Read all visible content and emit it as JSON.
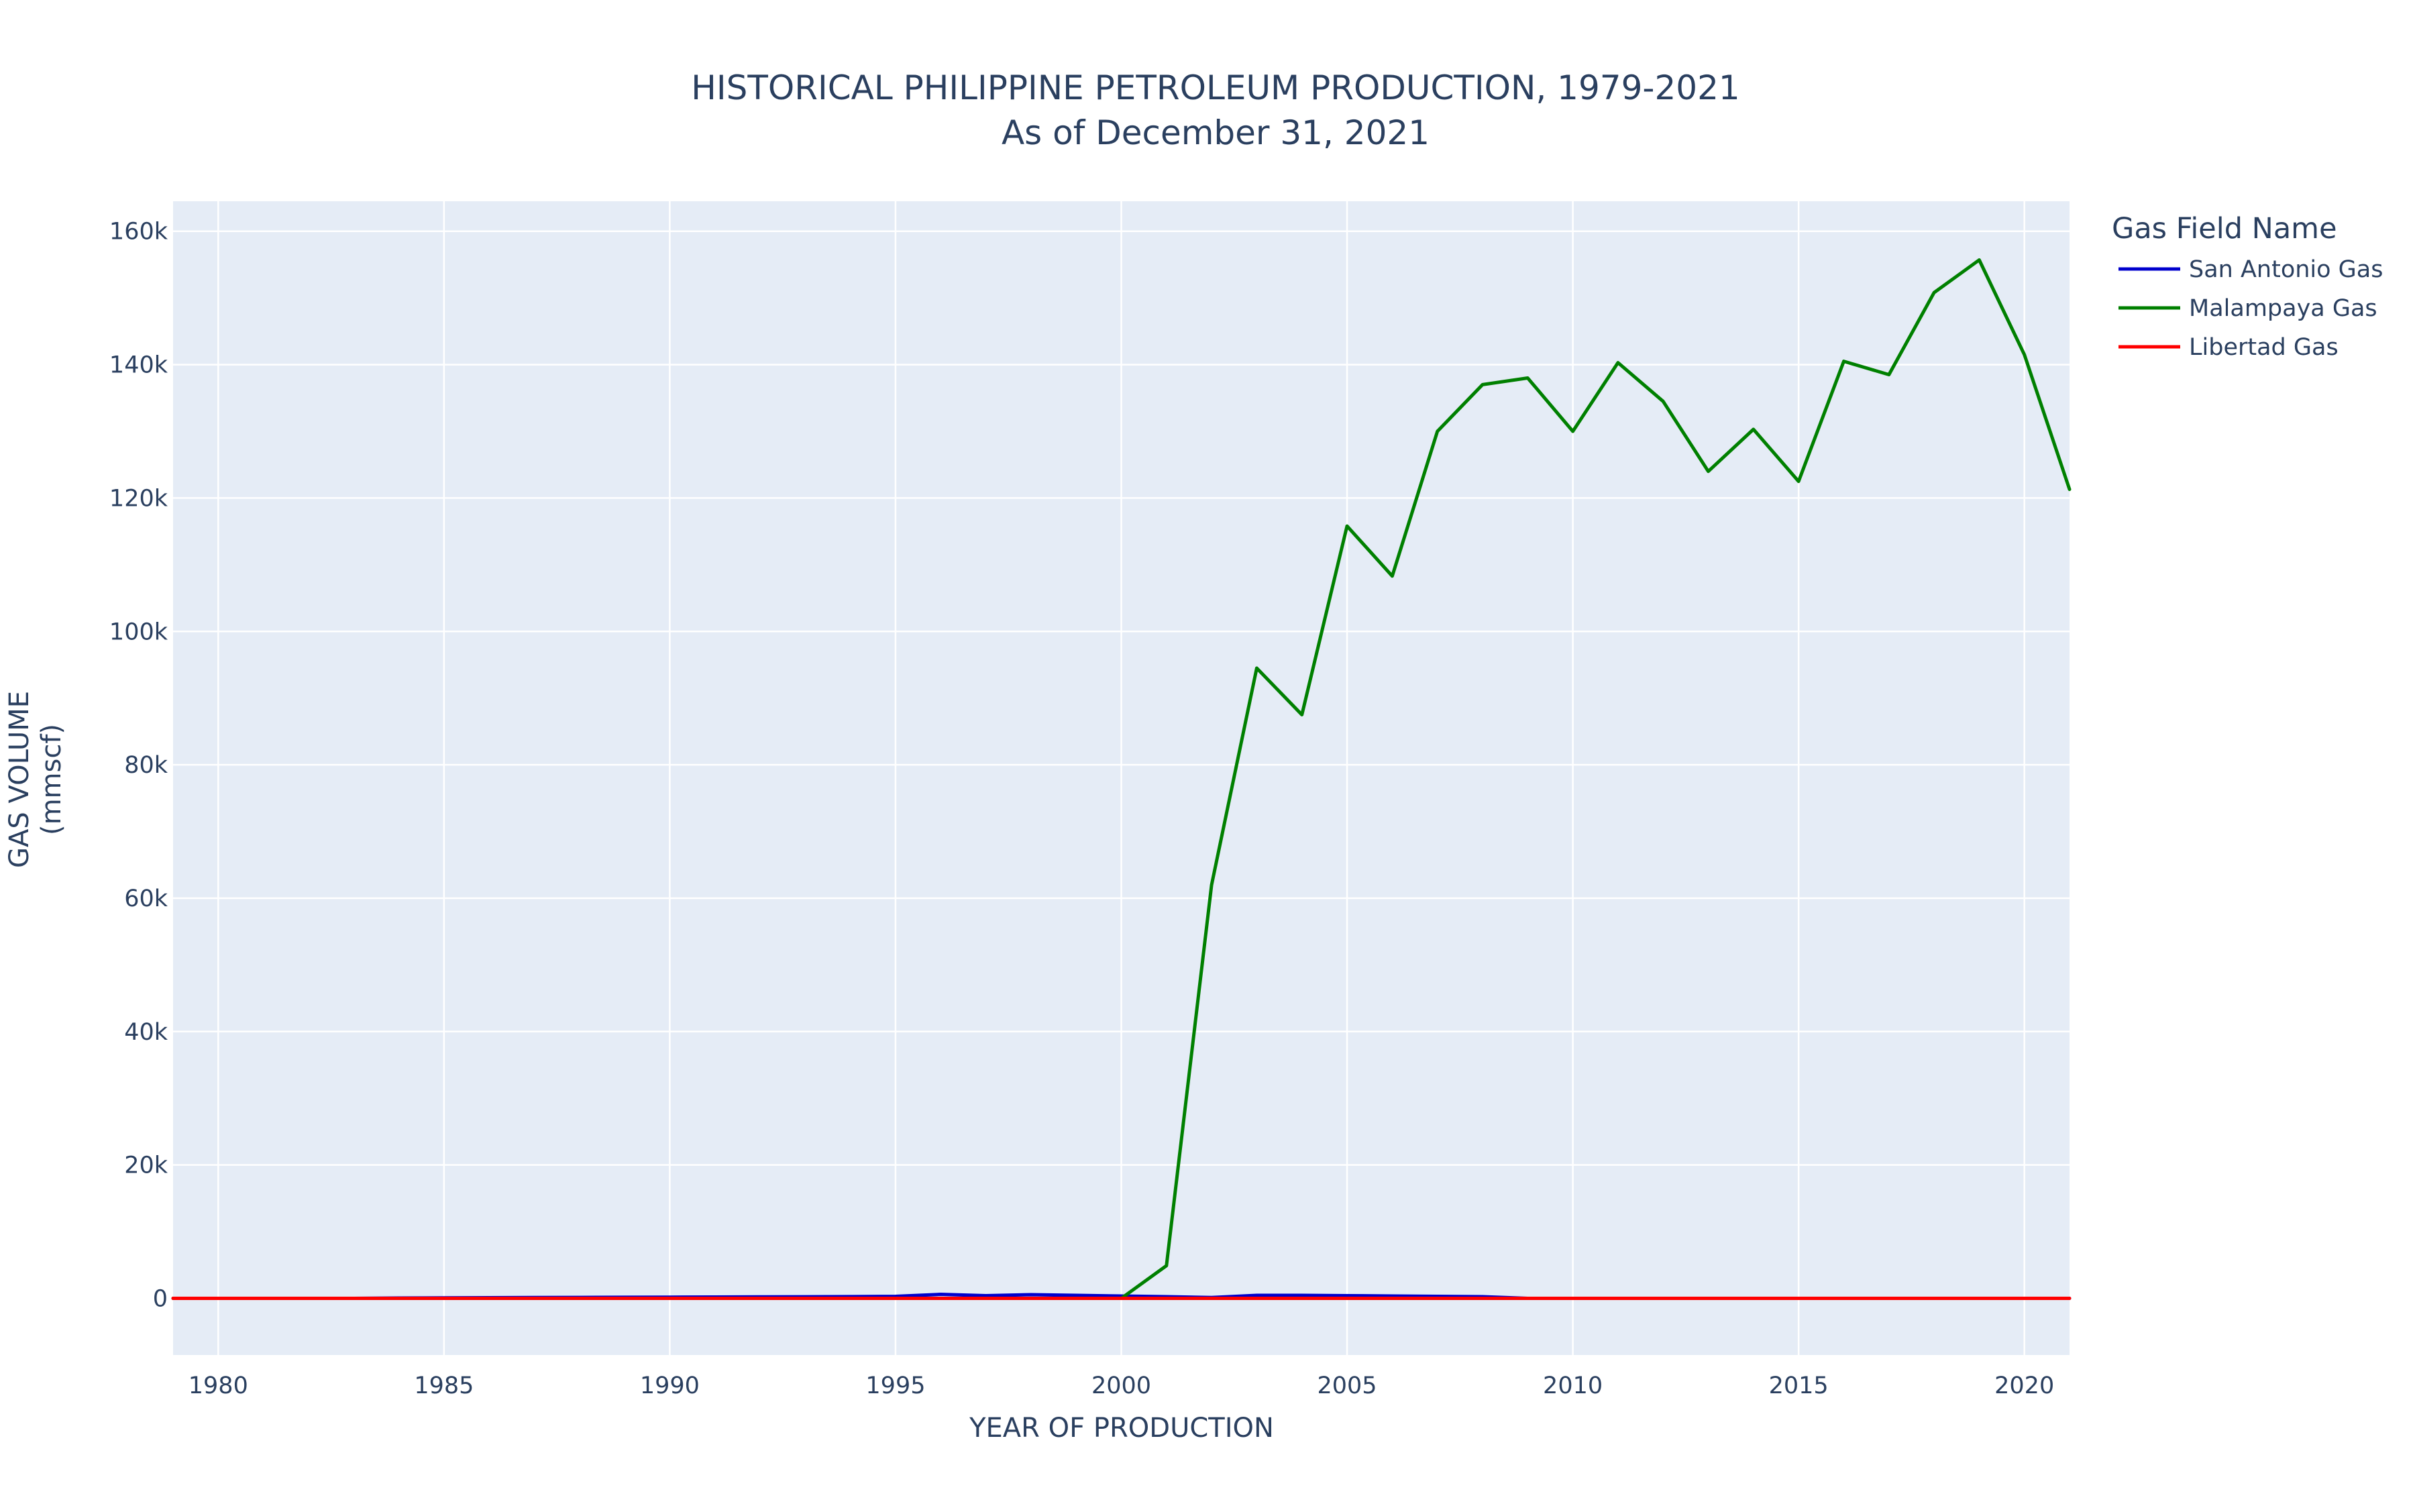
{
  "chart_data": {
    "type": "line",
    "title": "HISTORICAL PHILIPPINE PETROLEUM PRODUCTION, 1979-2021",
    "subtitle": "As of December 31, 2021",
    "xlabel": "YEAR OF PRODUCTION",
    "ylabel_line1": "GAS VOLUME",
    "ylabel_line2": "(mmscf)",
    "xlim": [
      1979,
      2021
    ],
    "ylim": [
      -8500,
      164500
    ],
    "x_ticks": [
      1980,
      1985,
      1990,
      1995,
      2000,
      2005,
      2010,
      2015,
      2020
    ],
    "x_tick_labels": [
      "1980",
      "1985",
      "1990",
      "1995",
      "2000",
      "2005",
      "2010",
      "2015",
      "2020"
    ],
    "y_ticks": [
      0,
      20000,
      40000,
      60000,
      80000,
      100000,
      120000,
      140000,
      160000
    ],
    "y_tick_labels": [
      "0",
      "20k",
      "40k",
      "60k",
      "80k",
      "100k",
      "120k",
      "140k",
      "160k"
    ],
    "grid": true,
    "plot_background": "#e5ecf6",
    "grid_color": "#ffffff",
    "legend_title": "Gas Field Name",
    "legend_position": "right",
    "series": [
      {
        "name": "San Antonio Gas",
        "color": "#0000cd",
        "x": [
          1979,
          1980,
          1981,
          1982,
          1983,
          1984,
          1985,
          1986,
          1987,
          1988,
          1989,
          1990,
          1991,
          1992,
          1993,
          1994,
          1995,
          1996,
          1997,
          1998,
          1999,
          2000,
          2001,
          2002,
          2003,
          2004,
          2005,
          2006,
          2007,
          2008,
          2009,
          2010,
          2011,
          2012,
          2013,
          2014,
          2015,
          2016,
          2017,
          2018,
          2019,
          2020,
          2021
        ],
        "values": [
          0,
          0,
          0,
          0,
          0,
          50,
          80,
          100,
          120,
          140,
          160,
          180,
          200,
          220,
          240,
          260,
          300,
          600,
          400,
          550,
          450,
          350,
          250,
          120,
          450,
          450,
          400,
          350,
          300,
          250,
          0,
          0,
          0,
          0,
          0,
          0,
          0,
          0,
          0,
          0,
          0,
          0,
          0
        ]
      },
      {
        "name": "Malampaya Gas",
        "color": "#008000",
        "x": [
          1979,
          1980,
          1981,
          1982,
          1983,
          1984,
          1985,
          1986,
          1987,
          1988,
          1989,
          1990,
          1991,
          1992,
          1993,
          1994,
          1995,
          1996,
          1997,
          1998,
          1999,
          2000,
          2001,
          2002,
          2003,
          2004,
          2005,
          2006,
          2007,
          2008,
          2009,
          2010,
          2011,
          2012,
          2013,
          2014,
          2015,
          2016,
          2017,
          2018,
          2019,
          2020,
          2021
        ],
        "values": [
          0,
          0,
          0,
          0,
          0,
          0,
          0,
          0,
          0,
          0,
          0,
          0,
          0,
          0,
          0,
          0,
          0,
          0,
          0,
          0,
          0,
          0,
          4900,
          62000,
          94500,
          87500,
          115800,
          108300,
          130000,
          137000,
          138000,
          130000,
          140300,
          134500,
          124000,
          130300,
          122500,
          140500,
          138500,
          150800,
          155700,
          141500,
          121300
        ]
      },
      {
        "name": "Libertad Gas",
        "color": "#ff0000",
        "x": [
          1979,
          1980,
          1981,
          1982,
          1983,
          1984,
          1985,
          1986,
          1987,
          1988,
          1989,
          1990,
          1991,
          1992,
          1993,
          1994,
          1995,
          1996,
          1997,
          1998,
          1999,
          2000,
          2001,
          2002,
          2003,
          2004,
          2005,
          2006,
          2007,
          2008,
          2009,
          2010,
          2011,
          2012,
          2013,
          2014,
          2015,
          2016,
          2017,
          2018,
          2019,
          2020,
          2021
        ],
        "values": [
          0,
          0,
          0,
          0,
          0,
          0,
          0,
          0,
          0,
          0,
          0,
          0,
          0,
          0,
          0,
          0,
          0,
          0,
          0,
          0,
          0,
          0,
          0,
          0,
          0,
          0,
          0,
          0,
          0,
          0,
          0,
          0,
          0,
          0,
          0,
          0,
          0,
          0,
          0,
          0,
          0,
          0,
          0
        ]
      }
    ]
  }
}
